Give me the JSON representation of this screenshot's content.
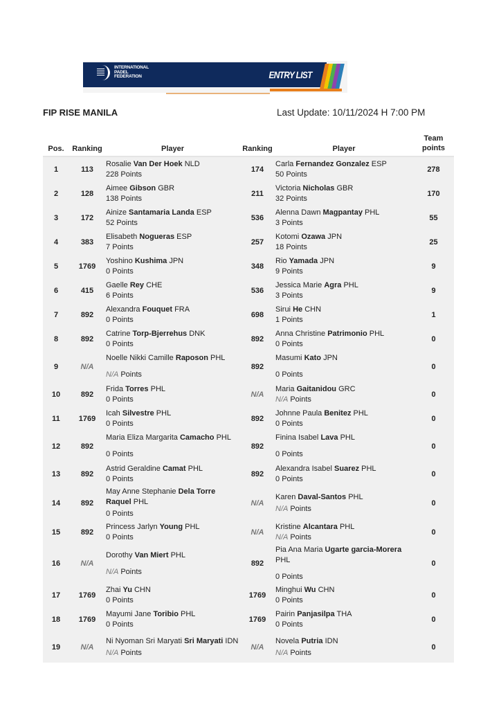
{
  "banner": {
    "org_name": "INTERNATIONAL PADEL FEDERATION",
    "label": "ENTRY LIST",
    "colors": {
      "navy": "#0f2a5c",
      "orange": "#e87f1d"
    }
  },
  "title": "FIP RISE MANILA",
  "last_update": "Last Update: 10/11/2024 H 7:00 PM",
  "headers": {
    "pos": "Pos.",
    "ranking1": "Ranking",
    "player1": "Player",
    "ranking2": "Ranking",
    "player2": "Player",
    "team_points": "Team points"
  },
  "points_suffix": "Points",
  "rows": [
    {
      "pos": "1",
      "r1": "113",
      "p1": {
        "first": "Rosalie",
        "last": "Van Der Hoek",
        "country": "NLD",
        "points": "228"
      },
      "r2": "174",
      "p2": {
        "first": "Carla",
        "last": "Fernandez Gonzalez",
        "country": "ESP",
        "points": "50"
      },
      "team": "278"
    },
    {
      "pos": "2",
      "r1": "128",
      "p1": {
        "first": "Aimee",
        "last": "Gibson",
        "country": "GBR",
        "points": "138"
      },
      "r2": "211",
      "p2": {
        "first": "Victoria",
        "last": "Nicholas",
        "country": "GBR",
        "points": "32"
      },
      "team": "170"
    },
    {
      "pos": "3",
      "r1": "172",
      "p1": {
        "first": "Ainize",
        "last": "Santamaria Landa",
        "country": "ESP",
        "points": "52"
      },
      "r2": "536",
      "p2": {
        "first": "Alenna Dawn",
        "last": "Magpantay",
        "country": "PHL",
        "points": "3"
      },
      "team": "55"
    },
    {
      "pos": "4",
      "r1": "383",
      "p1": {
        "first": "Elisabeth",
        "last": "Nogueras",
        "country": "ESP",
        "points": "7"
      },
      "r2": "257",
      "p2": {
        "first": "Kotomi",
        "last": "Ozawa",
        "country": "JPN",
        "points": "18"
      },
      "team": "25"
    },
    {
      "pos": "5",
      "r1": "1769",
      "p1": {
        "first": "Yoshino",
        "last": "Kushima",
        "country": "JPN",
        "points": "0"
      },
      "r2": "348",
      "p2": {
        "first": "Rio",
        "last": "Yamada",
        "country": "JPN",
        "points": "9"
      },
      "team": "9"
    },
    {
      "pos": "6",
      "r1": "415",
      "p1": {
        "first": "Gaelle",
        "last": "Rey",
        "country": "CHE",
        "points": "6"
      },
      "r2": "536",
      "p2": {
        "first": "Jessica Marie",
        "last": "Agra",
        "country": "PHL",
        "points": "3"
      },
      "team": "9"
    },
    {
      "pos": "7",
      "r1": "892",
      "p1": {
        "first": "Alexandra",
        "last": "Fouquet",
        "country": "FRA",
        "points": "0"
      },
      "r2": "698",
      "p2": {
        "first": "Sirui",
        "last": "He",
        "country": "CHN",
        "points": "1"
      },
      "team": "1"
    },
    {
      "pos": "8",
      "r1": "892",
      "p1": {
        "first": "Catrine",
        "last": "Torp-Bjerrehus",
        "country": "DNK",
        "points": "0"
      },
      "r2": "892",
      "p2": {
        "first": "Anna Christine",
        "last": "Patrimonio",
        "country": "PHL",
        "points": "0"
      },
      "team": "0"
    },
    {
      "pos": "9",
      "r1": "N/A",
      "p1": {
        "first": "Noelle Nikki Camille",
        "last": "Raposon",
        "country": "PHL",
        "points": "N/A"
      },
      "r2": "892",
      "p2": {
        "first": "Masumi",
        "last": "Kato",
        "country": "JPN",
        "points": "0"
      },
      "team": "0"
    },
    {
      "pos": "10",
      "r1": "892",
      "p1": {
        "first": "Frida",
        "last": "Torres",
        "country": "PHL",
        "points": "0"
      },
      "r2": "N/A",
      "p2": {
        "first": "Maria",
        "last": "Gaitanidou",
        "country": "GRC",
        "points": "N/A"
      },
      "team": "0"
    },
    {
      "pos": "11",
      "r1": "1769",
      "p1": {
        "first": "Icah",
        "last": "Silvestre",
        "country": "PHL",
        "points": "0"
      },
      "r2": "892",
      "p2": {
        "first": "Johnne Paula",
        "last": "Benitez",
        "country": "PHL",
        "points": "0"
      },
      "team": "0"
    },
    {
      "pos": "12",
      "r1": "892",
      "p1": {
        "first": "Maria Eliza Margarita",
        "last": "Camacho",
        "country": "PHL",
        "points": "0"
      },
      "r2": "892",
      "p2": {
        "first": "Finina Isabel",
        "last": "Lava",
        "country": "PHL",
        "points": "0"
      },
      "team": "0"
    },
    {
      "pos": "13",
      "r1": "892",
      "p1": {
        "first": "Astrid Geraldine",
        "last": "Camat",
        "country": "PHL",
        "points": "0"
      },
      "r2": "892",
      "p2": {
        "first": "Alexandra Isabel",
        "last": "Suarez",
        "country": "PHL",
        "points": "0"
      },
      "team": "0"
    },
    {
      "pos": "14",
      "r1": "892",
      "p1": {
        "first": "May Anne Stephanie",
        "last": "Dela Torre Raquel",
        "country": "PHL",
        "points": "0"
      },
      "r2": "N/A",
      "p2": {
        "first": "Karen",
        "last": "Daval-Santos",
        "country": "PHL",
        "points": "N/A"
      },
      "team": "0"
    },
    {
      "pos": "15",
      "r1": "892",
      "p1": {
        "first": "Princess Jarlyn",
        "last": "Young",
        "country": "PHL",
        "points": "0"
      },
      "r2": "N/A",
      "p2": {
        "first": "Kristine",
        "last": "Alcantara",
        "country": "PHL",
        "points": "N/A"
      },
      "team": "0"
    },
    {
      "pos": "16",
      "r1": "N/A",
      "p1": {
        "first": "Dorothy",
        "last": "Van Miert",
        "country": "PHL",
        "points": "N/A"
      },
      "r2": "892",
      "p2": {
        "first": "Pia Ana Maria",
        "last": "Ugarte garcia-Morera",
        "country": "PHL",
        "points": "0"
      },
      "team": "0"
    },
    {
      "pos": "17",
      "r1": "1769",
      "p1": {
        "first": "Zhai",
        "last": "Yu",
        "country": "CHN",
        "points": "0"
      },
      "r2": "1769",
      "p2": {
        "first": "Minghui",
        "last": "Wu",
        "country": "CHN",
        "points": "0"
      },
      "team": "0"
    },
    {
      "pos": "18",
      "r1": "1769",
      "p1": {
        "first": "Mayumi Jane",
        "last": "Toribio",
        "country": "PHL",
        "points": "0"
      },
      "r2": "1769",
      "p2": {
        "first": "Pairin",
        "last": "Panjasilpa",
        "country": "THA",
        "points": "0"
      },
      "team": "0"
    },
    {
      "pos": "19",
      "r1": "N/A",
      "p1": {
        "first": "Ni Nyoman Sri Maryati",
        "last": "Sri Maryati",
        "country": "IDN",
        "points": "N/A"
      },
      "r2": "N/A",
      "p2": {
        "first": "Novela",
        "last": "Putria",
        "country": "IDN",
        "points": "N/A"
      },
      "team": "0"
    }
  ]
}
